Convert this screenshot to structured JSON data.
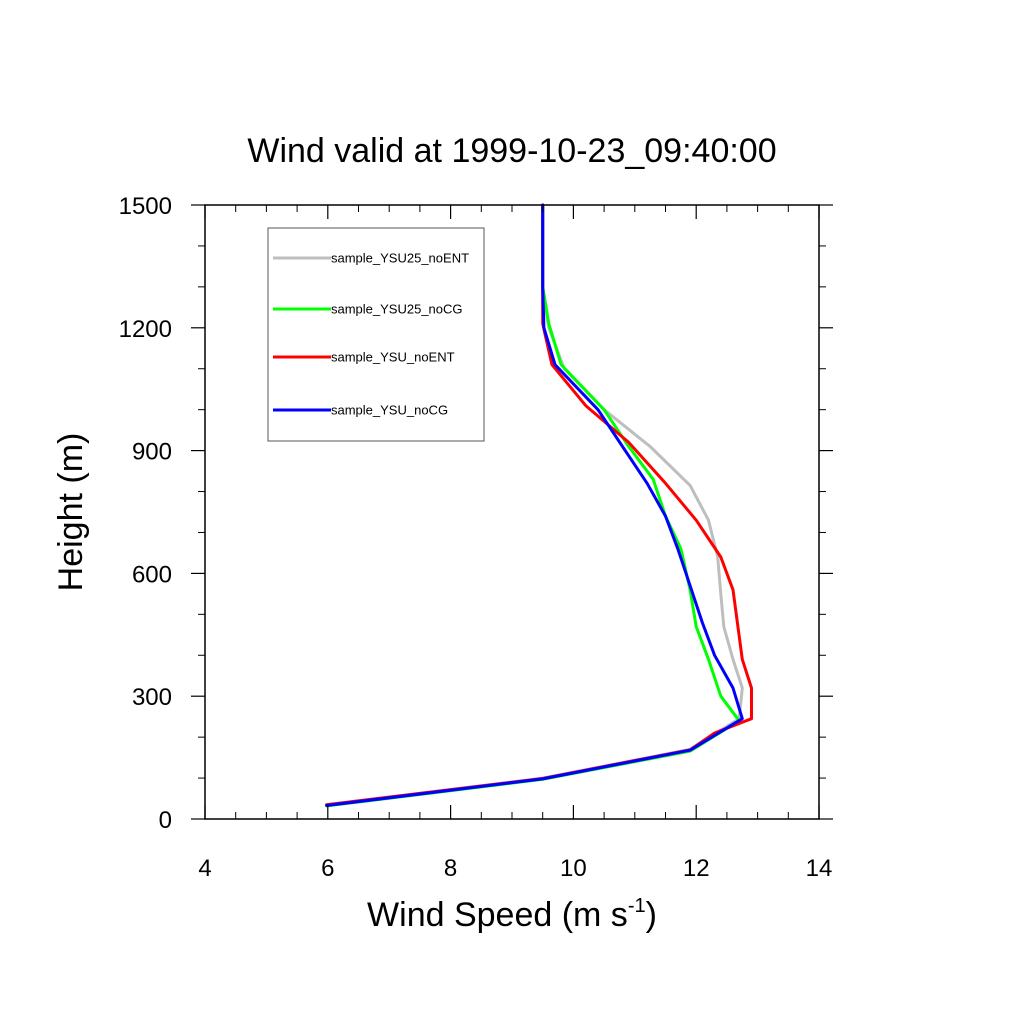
{
  "chart_data": {
    "type": "line",
    "title": "Wind valid at 1999-10-23_09:40:00",
    "xlabel": {
      "base": "Wind Speed (m s",
      "sup": "-1",
      "close": ")"
    },
    "ylabel": "Height (m)",
    "xlim": [
      4,
      14
    ],
    "ylim": [
      0,
      1500
    ],
    "xticks": [
      4,
      6,
      8,
      10,
      12,
      14
    ],
    "yticks": [
      0,
      300,
      600,
      900,
      1200,
      1500
    ],
    "xticks_labels": [
      "4",
      "6",
      "8",
      "10",
      "12",
      "14"
    ],
    "yticks_labels": [
      "0",
      "300",
      "600",
      "900",
      "1200",
      "1500"
    ],
    "x_minor_step": 0.5,
    "y_minor_step": 100,
    "grid": false,
    "legend_position": "top-left",
    "series": [
      {
        "name": "sample_YSU25_noENT",
        "color": "#bebebe",
        "points": [
          [
            5.98,
            35
          ],
          [
            9.5,
            100
          ],
          [
            11.9,
            170
          ],
          [
            12.7,
            245
          ],
          [
            12.75,
            320
          ],
          [
            12.6,
            390
          ],
          [
            12.45,
            470
          ],
          [
            12.4,
            550
          ],
          [
            12.35,
            640
          ],
          [
            12.2,
            730
          ],
          [
            11.9,
            815
          ],
          [
            11.25,
            910
          ],
          [
            10.5,
            1000
          ],
          [
            9.85,
            1100
          ],
          [
            9.6,
            1200
          ],
          [
            9.5,
            1290
          ],
          [
            9.5,
            1400
          ],
          [
            9.5,
            1500
          ]
        ]
      },
      {
        "name": "sample_YSU25_noCG",
        "color": "#00ff00",
        "points": [
          [
            5.98,
            32
          ],
          [
            9.5,
            97
          ],
          [
            11.9,
            166
          ],
          [
            12.7,
            240
          ],
          [
            12.4,
            300
          ],
          [
            12.2,
            390
          ],
          [
            12.0,
            470
          ],
          [
            11.9,
            560
          ],
          [
            11.75,
            660
          ],
          [
            11.5,
            740
          ],
          [
            11.3,
            830
          ],
          [
            10.9,
            910
          ],
          [
            10.5,
            1000
          ],
          [
            9.8,
            1110
          ],
          [
            9.6,
            1210
          ],
          [
            9.5,
            1300
          ],
          [
            9.5,
            1400
          ],
          [
            9.5,
            1500
          ]
        ]
      },
      {
        "name": "sample_YSU_noENT",
        "color": "#ff0000",
        "points": [
          [
            5.98,
            35
          ],
          [
            9.5,
            99
          ],
          [
            11.9,
            169
          ],
          [
            12.3,
            210
          ],
          [
            12.9,
            245
          ],
          [
            12.9,
            320
          ],
          [
            12.75,
            390
          ],
          [
            12.6,
            560
          ],
          [
            12.4,
            640
          ],
          [
            12.0,
            730
          ],
          [
            11.5,
            820
          ],
          [
            10.9,
            920
          ],
          [
            10.2,
            1010
          ],
          [
            9.65,
            1110
          ],
          [
            9.5,
            1210
          ],
          [
            9.5,
            1300
          ],
          [
            9.5,
            1400
          ],
          [
            9.5,
            1500
          ]
        ]
      },
      {
        "name": "sample_YSU_noCG",
        "color": "#0000ff",
        "points": [
          [
            5.98,
            33
          ],
          [
            9.5,
            98
          ],
          [
            11.9,
            168
          ],
          [
            12.75,
            245
          ],
          [
            12.6,
            320
          ],
          [
            12.3,
            400
          ],
          [
            12.1,
            480
          ],
          [
            11.9,
            570
          ],
          [
            11.7,
            660
          ],
          [
            11.5,
            740
          ],
          [
            11.2,
            820
          ],
          [
            10.8,
            910
          ],
          [
            10.4,
            1000
          ],
          [
            9.7,
            1110
          ],
          [
            9.52,
            1200
          ],
          [
            9.5,
            1300
          ],
          [
            9.5,
            1400
          ],
          [
            9.5,
            1500
          ]
        ]
      }
    ]
  }
}
